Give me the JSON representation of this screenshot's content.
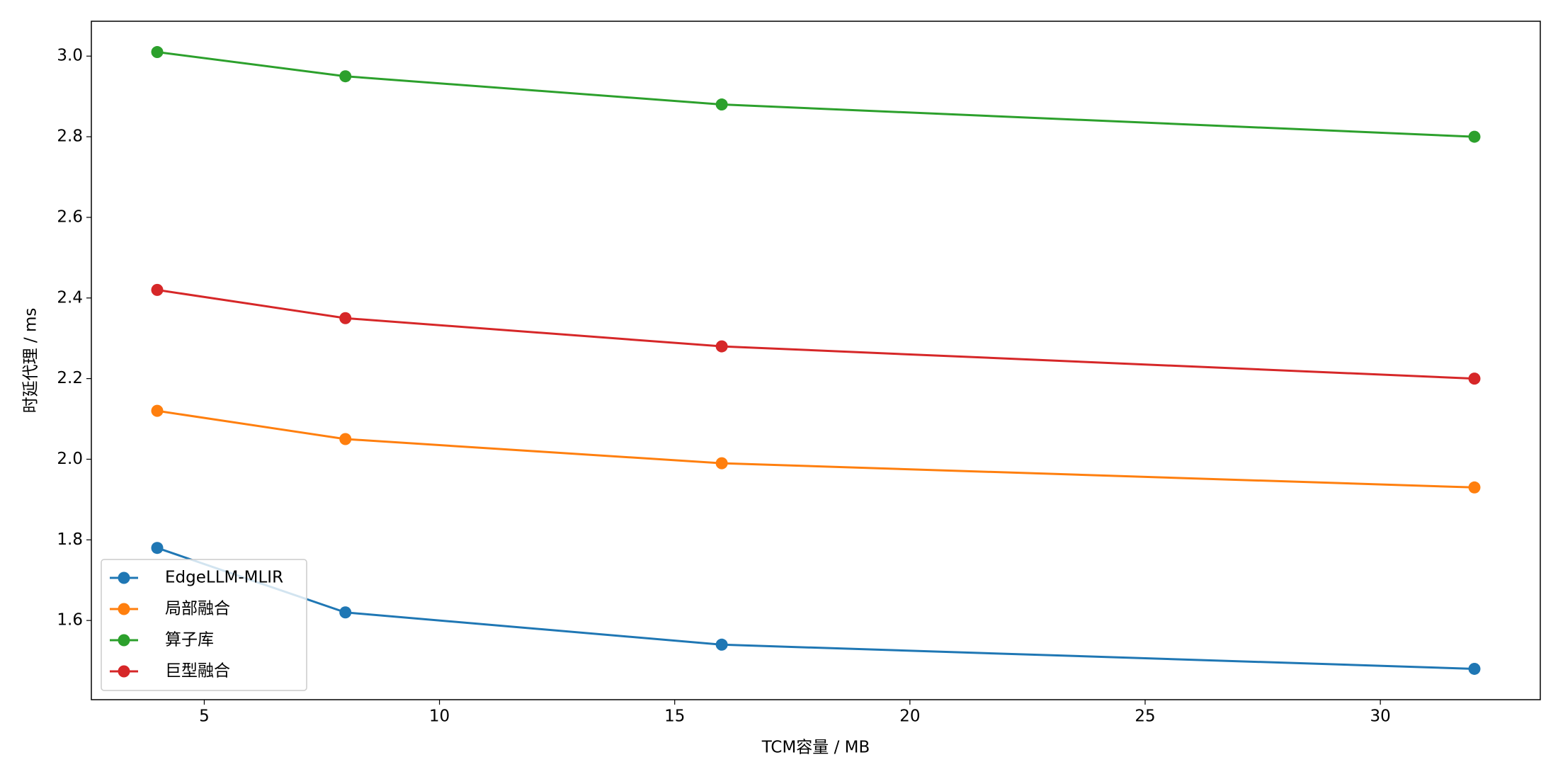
{
  "chart_data": {
    "type": "line",
    "xlabel": "TCM容量 / MB",
    "ylabel": "时延代理 / ms",
    "x": [
      4,
      8,
      16,
      32
    ],
    "series": [
      {
        "name": "EdgeLLM-MLIR",
        "color": "#1f77b4",
        "values": [
          1.78,
          1.62,
          1.54,
          1.48
        ]
      },
      {
        "name": "局部融合",
        "color": "#ff7f0e",
        "values": [
          2.12,
          2.05,
          1.99,
          1.93
        ]
      },
      {
        "name": "算子库",
        "color": "#2ca02c",
        "values": [
          3.01,
          2.95,
          2.88,
          2.8
        ]
      },
      {
        "name": "巨型融合",
        "color": "#d62728",
        "values": [
          2.42,
          2.35,
          2.28,
          2.2
        ]
      }
    ],
    "xlim": [
      2.6,
      33.4
    ],
    "ylim": [
      1.4035,
      3.0865
    ],
    "xticks": [
      5,
      10,
      15,
      20,
      25,
      30
    ],
    "yticks": [
      1.6,
      1.8,
      {
        "value": 2,
        "label": "2.0"
      },
      2.2,
      2.4,
      2.6,
      2.8,
      {
        "value": 3,
        "label": "3.0"
      }
    ],
    "grid": false,
    "legend": "lower left",
    "marker": "circle"
  }
}
